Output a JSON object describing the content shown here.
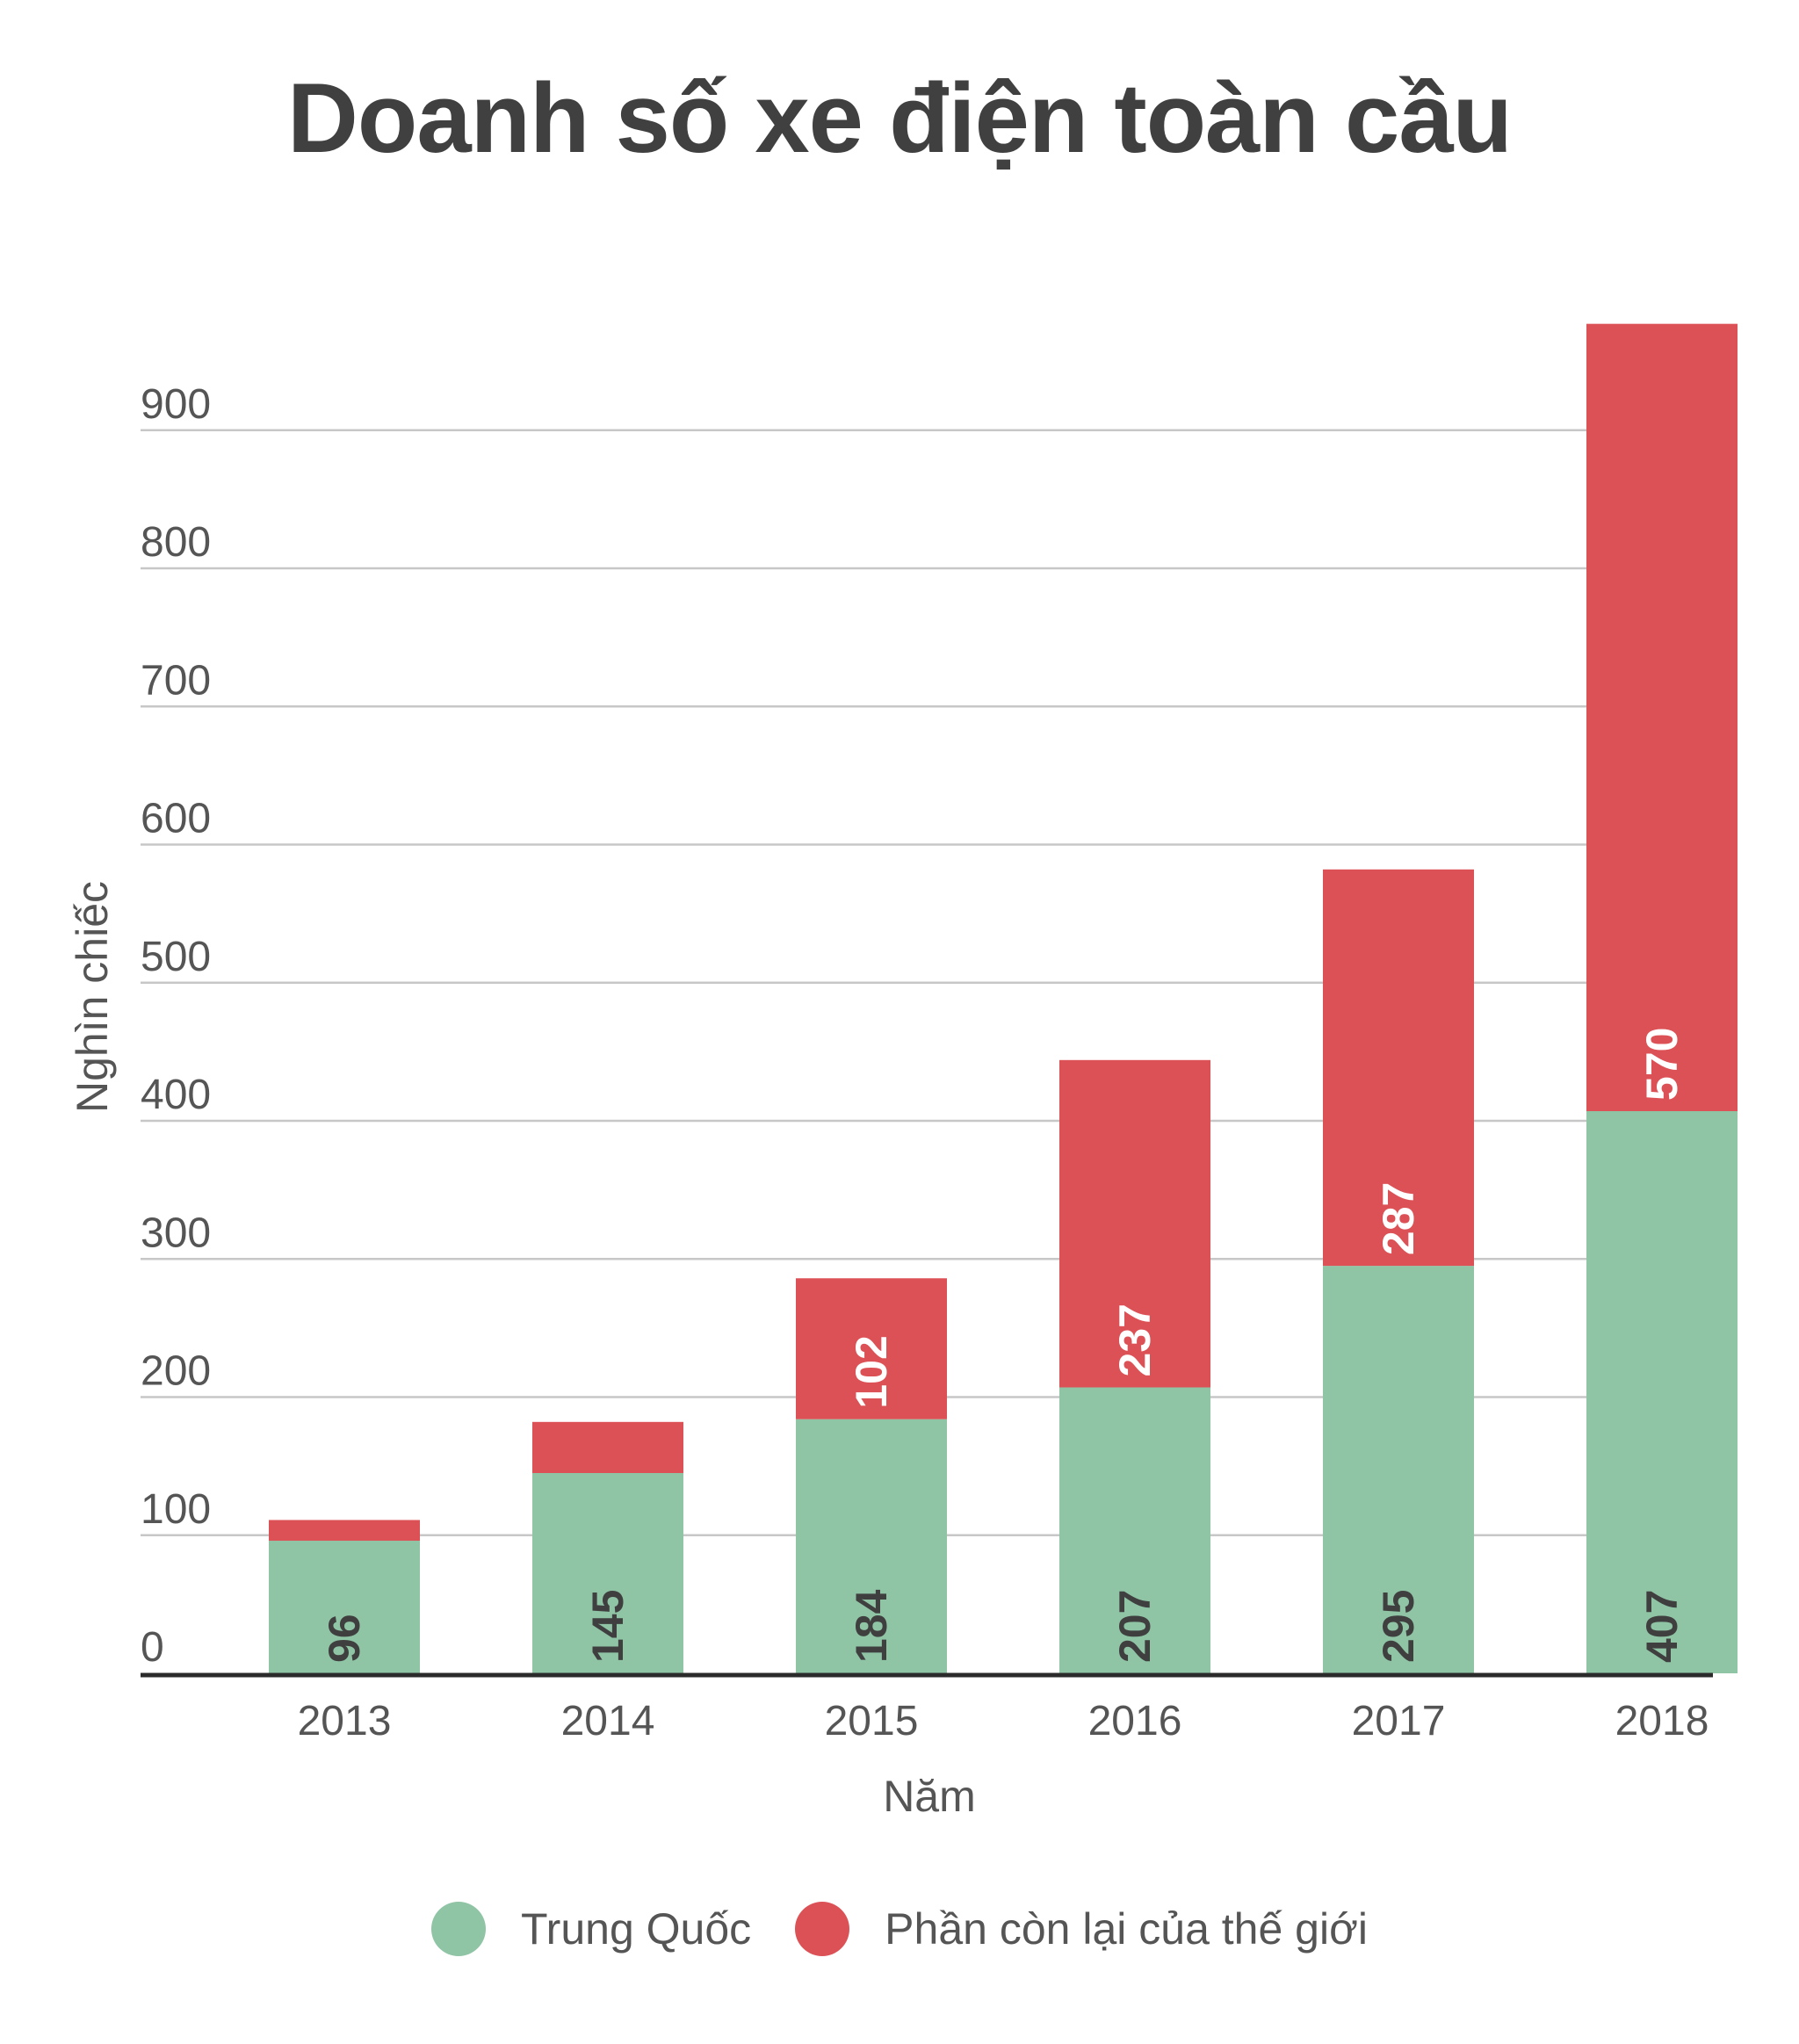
{
  "chart_data": {
    "type": "bar",
    "stacked": true,
    "title": "Doanh số xe điện toàn cầu",
    "xlabel": "Năm",
    "ylabel": "Nghìn chiếc",
    "ylim": [
      0,
      950
    ],
    "yticks": [
      0,
      100,
      200,
      300,
      400,
      500,
      600,
      700,
      800,
      900
    ],
    "grid": true,
    "legend_position": "bottom",
    "categories": [
      "2013",
      "2014",
      "2015",
      "2016",
      "2017",
      "2018"
    ],
    "series": [
      {
        "name": "Trung Quốc",
        "color": "#8fc4a5",
        "label_color": "#3f3f3f",
        "values": [
          96,
          145,
          184,
          207,
          295,
          407
        ],
        "labels": [
          "96",
          "145",
          "184",
          "207",
          "295",
          "407"
        ]
      },
      {
        "name": "Phần còn lại của thế giới",
        "color": "#dc5155",
        "label_color": "#ffffff",
        "values": [
          15,
          37,
          102,
          237,
          287,
          570
        ],
        "labels": [
          "",
          "",
          "102",
          "237",
          "287",
          "570"
        ]
      }
    ]
  }
}
